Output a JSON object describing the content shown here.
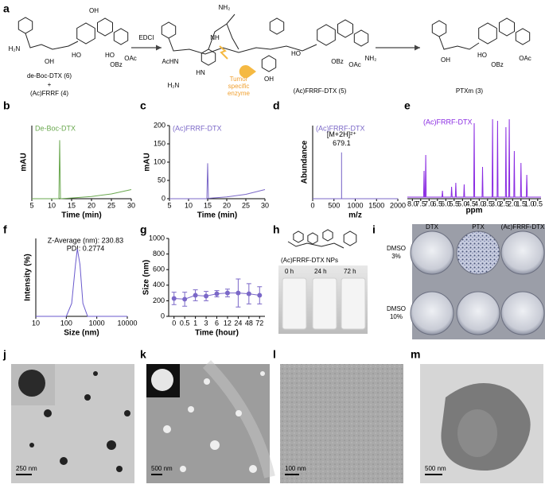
{
  "panel_labels": [
    "a",
    "b",
    "c",
    "d",
    "e",
    "f",
    "g",
    "h",
    "i",
    "j",
    "k",
    "l",
    "m"
  ],
  "scheme": {
    "compound_6": "de-Boc-DTX (6)",
    "plus": "+",
    "compound_4": "(Ac)FRRF (4)",
    "reagent": "EDCI",
    "enzyme": [
      "Tumor",
      "specific",
      "enzyme"
    ],
    "compound_5": "(Ac)FRRF-DTX (5)",
    "compound_3": "PTXm (3)",
    "atom_labels": [
      "H₂N",
      "OH",
      "HO",
      "OH",
      "HO",
      "OBz",
      "OAc",
      "AcHN",
      "H₂N",
      "HN",
      "NH",
      "NH₂",
      "OH",
      "HO",
      "OBz",
      "OAc",
      "NH₂",
      "OH",
      "HO",
      "OBz",
      "OAc"
    ]
  },
  "chart_data": [
    {
      "type": "line",
      "annotation": "De-Boc-DTX",
      "xlabel": "Time (min)",
      "ylabel": "mAU",
      "xlim": [
        5,
        30
      ],
      "xticks": [
        5,
        10,
        15,
        20,
        25,
        30
      ],
      "ylim": [
        0,
        200
      ],
      "series": [
        {
          "color": "#6aa84f",
          "x": [
            5,
            11.8,
            12,
            12.2,
            15,
            20,
            25,
            30
          ],
          "values": [
            0,
            0,
            160,
            0,
            2,
            6,
            13,
            25
          ]
        }
      ]
    },
    {
      "type": "line",
      "annotation": "(Ac)FRRF-DTX",
      "xlabel": "Time (min)",
      "ylabel": "mAU",
      "xlim": [
        5,
        30
      ],
      "xticks": [
        5,
        10,
        15,
        20,
        25,
        30
      ],
      "ylim": [
        0,
        200
      ],
      "yticks": [
        0,
        50,
        100,
        150,
        200
      ],
      "series": [
        {
          "color": "#7b68c8",
          "x": [
            5,
            14.8,
            15,
            15.2,
            20,
            25,
            30
          ],
          "values": [
            0,
            0,
            97,
            1,
            5,
            12,
            25
          ]
        }
      ]
    },
    {
      "type": "line",
      "annotation": "(Ac)FRRF-DTX",
      "peak_label": "[M+2H]²⁺",
      "xlabel": "m/z",
      "ylabel": "Abundance",
      "xlim": [
        0,
        2000
      ],
      "xticks": [
        0,
        500,
        1000,
        1500,
        2000
      ],
      "ylim": [
        0,
        150
      ],
      "series": [
        {
          "color": "#7b68c8",
          "x": [
            0,
            678,
            679.1,
            680,
            2000
          ],
          "values": [
            0,
            0,
            95,
            0,
            0
          ]
        }
      ]
    },
    {
      "type": "line",
      "annotation": "(Ac)FRRF-DTX",
      "xlabel": "ppm",
      "xlim": [
        8.3,
        0.3
      ],
      "xticks": [
        {
          "value": 8,
          "label": "8.0"
        },
        {
          "value": 7.5,
          "label": "7.5"
        },
        {
          "value": 7,
          "label": "7.0"
        },
        {
          "value": 6.5,
          "label": "6.5"
        },
        {
          "value": 6,
          "label": "6.0"
        },
        {
          "value": 5.5,
          "label": "5.5"
        },
        {
          "value": 5,
          "label": "5.0"
        },
        {
          "value": 4.5,
          "label": "4.5"
        },
        {
          "value": 4,
          "label": "4.0"
        },
        {
          "value": 3.5,
          "label": "3.5"
        },
        {
          "value": 3,
          "label": "3.0"
        },
        {
          "value": 2.5,
          "label": "2.5"
        },
        {
          "value": 2,
          "label": "2.0"
        },
        {
          "value": 1.5,
          "label": "1.5"
        },
        {
          "value": 1,
          "label": "1.0"
        },
        {
          "value": 0.5,
          "label": "0.5"
        }
      ],
      "ylim": [
        0,
        100
      ],
      "series": [
        {
          "color": "#8a2be2",
          "x": [
            8.3,
            7.33,
            7.3,
            7.27,
            7.23,
            7.2,
            7.17,
            6.23,
            6.2,
            6.17,
            5.68,
            5.65,
            5.62,
            5.43,
            5.4,
            5.37,
            4.93,
            4.9,
            4.87,
            4.33,
            4.3,
            4.27,
            3.83,
            3.8,
            3.77,
            3.23,
            3.2,
            3.17,
            2.93,
            2.9,
            2.87,
            2.43,
            2.4,
            2.37,
            2.23,
            2.2,
            2.17,
            1.93,
            1.9,
            1.87,
            1.53,
            1.5,
            1.47,
            1.18,
            1.15,
            1.12,
            0.3
          ],
          "values": [
            2,
            2,
            35,
            2,
            2,
            55,
            2,
            2,
            10,
            2,
            2,
            15,
            2,
            2,
            20,
            2,
            2,
            18,
            2,
            2,
            95,
            2,
            2,
            40,
            2,
            2,
            100,
            2,
            2,
            98,
            2,
            2,
            90,
            2,
            2,
            100,
            2,
            2,
            60,
            2,
            2,
            45,
            2,
            2,
            30,
            2,
            2
          ]
        }
      ]
    },
    {
      "type": "line",
      "annotations": [
        "Z-Average (nm): 230.83",
        "PDI: 0.2774"
      ],
      "xlabel": "Size (nm)",
      "ylabel": "Intensity (%)",
      "xlog": true,
      "xlim": [
        10,
        10000
      ],
      "xticks": [
        10,
        100,
        1000,
        10000
      ],
      "ylim": [
        0,
        30
      ],
      "series": [
        {
          "color": "#6a5acd",
          "x": [
            10,
            100,
            150,
            200,
            230,
            280,
            350,
            500,
            1000,
            10000
          ],
          "values": [
            0,
            0,
            5,
            20,
            26,
            20,
            5,
            0,
            0,
            0
          ]
        }
      ]
    },
    {
      "type": "line",
      "xlabel": "Time (hour)",
      "ylabel": "Size (nm)",
      "categories": [
        "0",
        "0.5",
        "1",
        "3",
        "6",
        "12",
        "24",
        "48",
        "72"
      ],
      "ylim": [
        0,
        1000
      ],
      "yticks": [
        0,
        200,
        400,
        600,
        800,
        1000
      ],
      "series": [
        {
          "color": "#7b68c8",
          "values": [
            230,
            220,
            270,
            260,
            290,
            300,
            300,
            290,
            270
          ],
          "errors": [
            80,
            90,
            70,
            60,
            40,
            50,
            180,
            130,
            110
          ]
        }
      ]
    }
  ],
  "panel_h": {
    "title": "(Ac)FRRF-DTX NPs",
    "times": [
      "0 h",
      "24 h",
      "72 h"
    ]
  },
  "panel_i": {
    "columns": [
      "DTX",
      "PTX",
      "(Ac)FRRF-DTX"
    ],
    "rows": [
      [
        "DMSO",
        "3%"
      ],
      [
        "DMSO",
        "10%"
      ]
    ]
  },
  "tem_scale_bars": [
    "250 nm",
    "500 nm",
    "100 nm",
    "500 nm"
  ]
}
